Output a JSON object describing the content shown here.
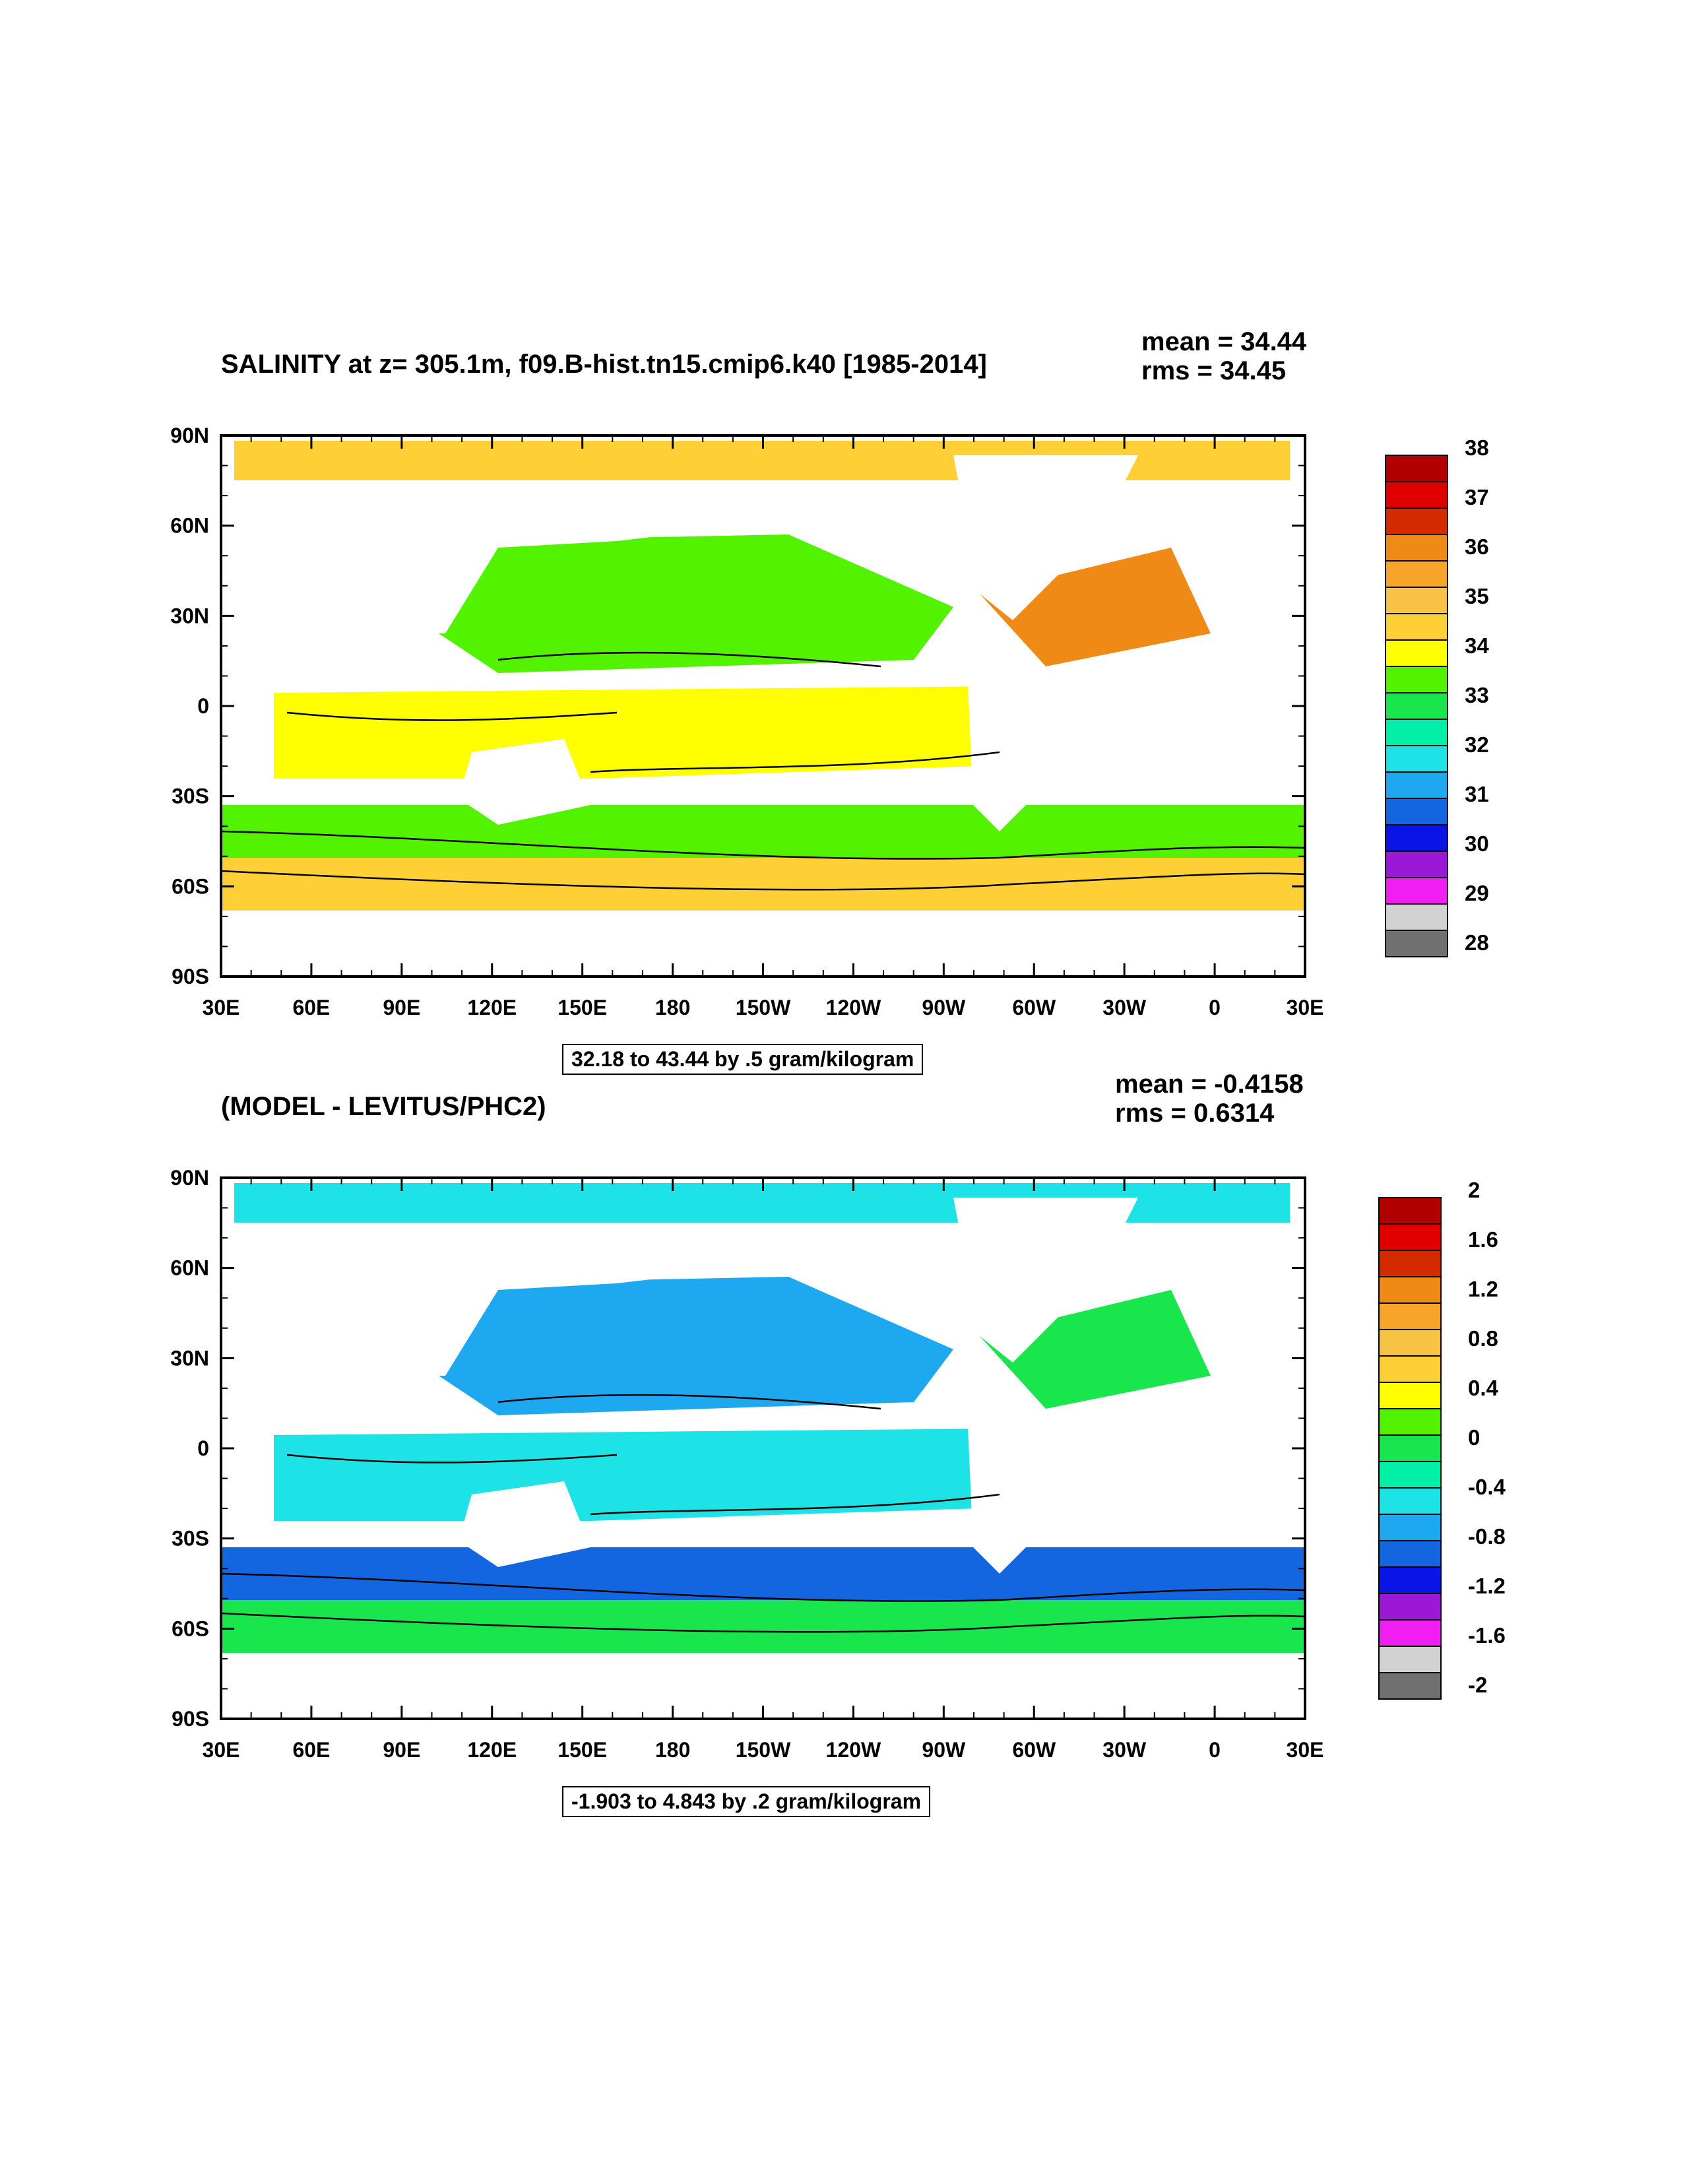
{
  "panels": [
    {
      "title": "SALINITY at z= 305.1m, f09.B-hist.tn15.cmip6.k40 [1985-2014]",
      "stats": {
        "mean": "mean = 34.44",
        "rms": "rms = 34.45"
      },
      "range_label": "32.18 to 43.44 by .5 gram/kilogram",
      "lat_labels": [
        "90N",
        "60N",
        "30N",
        "0",
        "30S",
        "60S",
        "90S"
      ],
      "lon_labels": [
        "30E",
        "60E",
        "90E",
        "120E",
        "150E",
        "180",
        "150W",
        "120W",
        "90W",
        "60W",
        "30W",
        "0",
        "30E"
      ],
      "colorbar": {
        "labels": [
          "38",
          "37",
          "36",
          "35",
          "34",
          "33",
          "32",
          "31",
          "30",
          "29",
          "28"
        ],
        "colors": [
          "#b20000",
          "#e00000",
          "#d42a00",
          "#ef8a17",
          "#f7a52a",
          "#f8c244",
          "#ffd035",
          "#ffff00",
          "#52f200",
          "#19e64d",
          "#00f0a8",
          "#1de3e6",
          "#1ea8f0",
          "#1466e0",
          "#0a14e6",
          "#9a18d6",
          "#f01ef0",
          "#d2d2d2",
          "#707070"
        ]
      },
      "field": {
        "north_band": "#ffd035",
        "tropics": "#ffff00",
        "north_pacific": "#52f200",
        "atlantic": "#ef8a17",
        "southern_ring": "#52f200",
        "southern_outer": "#ffd035"
      }
    },
    {
      "title": "(MODEL - LEVITUS/PHC2)",
      "stats": {
        "mean": "mean = -0.4158",
        "rms": "rms = 0.6314"
      },
      "range_label": "-1.903 to 4.843 by .2 gram/kilogram",
      "lat_labels": [
        "90N",
        "60N",
        "30N",
        "0",
        "30S",
        "60S",
        "90S"
      ],
      "lon_labels": [
        "30E",
        "60E",
        "90E",
        "120E",
        "150E",
        "180",
        "150W",
        "120W",
        "90W",
        "60W",
        "30W",
        "0",
        "30E"
      ],
      "colorbar": {
        "labels": [
          "2",
          "1.6",
          "1.2",
          "0.8",
          "0.4",
          "0",
          "-0.4",
          "-0.8",
          "-1.2",
          "-1.6",
          "-2"
        ],
        "colors": [
          "#b20000",
          "#e00000",
          "#d42a00",
          "#ef8a17",
          "#f7a52a",
          "#f8c244",
          "#ffd035",
          "#ffff00",
          "#52f200",
          "#19e64d",
          "#00f0a8",
          "#1de3e6",
          "#1ea8f0",
          "#1466e0",
          "#0a14e6",
          "#9a18d6",
          "#f01ef0",
          "#d2d2d2",
          "#707070"
        ]
      },
      "field": {
        "north_band": "#1de3e6",
        "tropics": "#1de3e6",
        "north_pacific": "#1ea8f0",
        "atlantic": "#19e64d",
        "southern_ring": "#1466e0",
        "southern_outer": "#19e64d"
      }
    }
  ]
}
